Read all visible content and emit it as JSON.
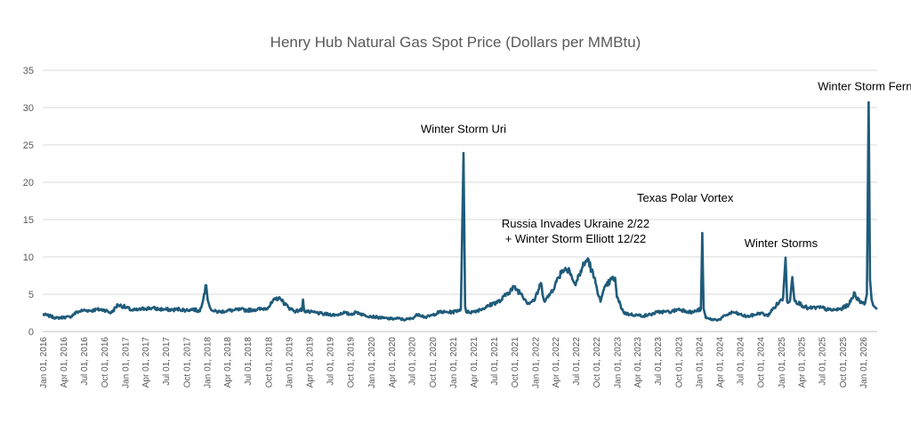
{
  "chart_data": {
    "type": "line",
    "title": "Henry Hub Natural Gas Spot Price (Dollars per MMBtu)",
    "xlabel": "",
    "ylabel": "",
    "ylim": [
      0,
      35
    ],
    "y_ticks": [
      0,
      5,
      10,
      15,
      20,
      25,
      30,
      35
    ],
    "grid": "horizontal",
    "line_color": "#1f5b7a",
    "x_tick_labels": [
      "Jan 01, 2016",
      "Apr 01, 2016",
      "Jul 01, 2016",
      "Oct 01, 2016",
      "Jan 01, 2017",
      "Apr 01, 2017",
      "Jul 01, 2017",
      "Oct 01, 2017",
      "Jan 01, 2018",
      "Apr 01, 2018",
      "Jul 01, 2018",
      "Oct 01, 2018",
      "Jan 01, 2019",
      "Apr 01, 2019",
      "Jul 01, 2019",
      "Oct 01, 2019",
      "Jan 01, 2020",
      "Apr 01, 2020",
      "Jul 01, 2020",
      "Oct 01, 2020",
      "Jan 01, 2021",
      "Apr 01, 2021",
      "Jul 01, 2021",
      "Oct 01, 2021",
      "Jan 01, 2022",
      "Apr 01, 2022",
      "Jul 01, 2022",
      "Oct 01, 2022",
      "Jan 01, 2023",
      "Apr 01, 2023",
      "Jul 01, 2023",
      "Oct 01, 2023",
      "Jan 01, 2024",
      "Apr 01, 2024",
      "Jul 01, 2024",
      "Oct 01, 2024",
      "Jan 01, 2025",
      "Apr 01, 2025",
      "Jul 01, 2025",
      "Oct 01, 2025",
      "Jan 01, 2026"
    ],
    "series": [
      {
        "points": [
          [
            "2016-01-01",
            2.3
          ],
          [
            "2016-02-01",
            2.1
          ],
          [
            "2016-03-01",
            1.8
          ],
          [
            "2016-04-01",
            1.9
          ],
          [
            "2016-05-01",
            1.95
          ],
          [
            "2016-06-01",
            2.6
          ],
          [
            "2016-07-01",
            2.85
          ],
          [
            "2016-08-01",
            2.8
          ],
          [
            "2016-09-01",
            2.95
          ],
          [
            "2016-10-01",
            2.9
          ],
          [
            "2016-11-01",
            2.5
          ],
          [
            "2016-12-01",
            3.6
          ],
          [
            "2017-01-01",
            3.3
          ],
          [
            "2017-02-01",
            2.85
          ],
          [
            "2017-03-01",
            2.9
          ],
          [
            "2017-04-01",
            3.1
          ],
          [
            "2017-05-01",
            3.15
          ],
          [
            "2017-06-01",
            3.0
          ],
          [
            "2017-07-01",
            2.95
          ],
          [
            "2017-08-01",
            2.9
          ],
          [
            "2017-09-01",
            3.0
          ],
          [
            "2017-10-01",
            2.85
          ],
          [
            "2017-11-01",
            3.0
          ],
          [
            "2017-12-01",
            2.7
          ],
          [
            "2017-12-29",
            6.2
          ],
          [
            "2018-01-05",
            4.2
          ],
          [
            "2018-01-15",
            3.2
          ],
          [
            "2018-02-01",
            2.7
          ],
          [
            "2018-03-01",
            2.65
          ],
          [
            "2018-04-01",
            2.8
          ],
          [
            "2018-05-01",
            2.85
          ],
          [
            "2018-06-01",
            2.95
          ],
          [
            "2018-07-01",
            2.85
          ],
          [
            "2018-08-01",
            2.95
          ],
          [
            "2018-09-01",
            3.0
          ],
          [
            "2018-10-01",
            3.25
          ],
          [
            "2018-11-01",
            4.3
          ],
          [
            "2018-11-20",
            4.6
          ],
          [
            "2018-12-01",
            4.1
          ],
          [
            "2019-01-01",
            3.2
          ],
          [
            "2019-02-01",
            2.7
          ],
          [
            "2019-03-01",
            2.95
          ],
          [
            "2019-03-05",
            4.3
          ],
          [
            "2019-03-10",
            2.8
          ],
          [
            "2019-04-01",
            2.6
          ],
          [
            "2019-05-01",
            2.55
          ],
          [
            "2019-06-01",
            2.35
          ],
          [
            "2019-07-01",
            2.3
          ],
          [
            "2019-08-01",
            2.2
          ],
          [
            "2019-09-01",
            2.55
          ],
          [
            "2019-10-01",
            2.3
          ],
          [
            "2019-11-01",
            2.6
          ],
          [
            "2019-12-01",
            2.2
          ],
          [
            "2020-01-01",
            2.05
          ],
          [
            "2020-02-01",
            1.9
          ],
          [
            "2020-03-01",
            1.8
          ],
          [
            "2020-04-01",
            1.7
          ],
          [
            "2020-05-01",
            1.75
          ],
          [
            "2020-06-01",
            1.6
          ],
          [
            "2020-07-01",
            1.75
          ],
          [
            "2020-08-01",
            2.35
          ],
          [
            "2020-09-01",
            1.9
          ],
          [
            "2020-10-01",
            2.2
          ],
          [
            "2020-11-01",
            2.6
          ],
          [
            "2020-12-01",
            2.6
          ],
          [
            "2021-01-01",
            2.6
          ],
          [
            "2021-02-05",
            3.0
          ],
          [
            "2021-02-17",
            23.9
          ],
          [
            "2021-02-24",
            3.4
          ],
          [
            "2021-03-01",
            2.6
          ],
          [
            "2021-04-01",
            2.65
          ],
          [
            "2021-05-01",
            2.95
          ],
          [
            "2021-06-01",
            3.3
          ],
          [
            "2021-07-01",
            3.8
          ],
          [
            "2021-08-01",
            4.1
          ],
          [
            "2021-09-01",
            5.2
          ],
          [
            "2021-10-01",
            5.9
          ],
          [
            "2021-11-01",
            5.1
          ],
          [
            "2021-12-01",
            3.8
          ],
          [
            "2022-01-01",
            4.3
          ],
          [
            "2022-01-28",
            6.5
          ],
          [
            "2022-02-10",
            4.2
          ],
          [
            "2022-03-01",
            4.6
          ],
          [
            "2022-04-01",
            6.3
          ],
          [
            "2022-05-01",
            8.2
          ],
          [
            "2022-06-01",
            8.5
          ],
          [
            "2022-06-20",
            6.8
          ],
          [
            "2022-07-01",
            6.2
          ],
          [
            "2022-07-15",
            7.5
          ],
          [
            "2022-08-01",
            8.6
          ],
          [
            "2022-08-25",
            9.8
          ],
          [
            "2022-09-10",
            8.2
          ],
          [
            "2022-10-01",
            6.2
          ],
          [
            "2022-10-20",
            4.0
          ],
          [
            "2022-11-01",
            5.4
          ],
          [
            "2022-12-01",
            6.8
          ],
          [
            "2022-12-24",
            7.2
          ],
          [
            "2023-01-01",
            4.6
          ],
          [
            "2023-02-01",
            2.5
          ],
          [
            "2023-03-01",
            2.3
          ],
          [
            "2023-04-01",
            2.2
          ],
          [
            "2023-05-01",
            2.1
          ],
          [
            "2023-06-01",
            2.3
          ],
          [
            "2023-07-01",
            2.6
          ],
          [
            "2023-08-01",
            2.65
          ],
          [
            "2023-09-01",
            2.65
          ],
          [
            "2023-10-01",
            3.0
          ],
          [
            "2023-11-01",
            2.8
          ],
          [
            "2023-12-01",
            2.55
          ],
          [
            "2024-01-10",
            3.0
          ],
          [
            "2024-01-16",
            13.2
          ],
          [
            "2024-01-22",
            3.1
          ],
          [
            "2024-02-01",
            1.8
          ],
          [
            "2024-03-01",
            1.6
          ],
          [
            "2024-04-01",
            1.6
          ],
          [
            "2024-05-01",
            2.2
          ],
          [
            "2024-06-01",
            2.6
          ],
          [
            "2024-07-01",
            2.3
          ],
          [
            "2024-08-01",
            2.0
          ],
          [
            "2024-09-01",
            2.2
          ],
          [
            "2024-10-01",
            2.5
          ],
          [
            "2024-11-01",
            2.1
          ],
          [
            "2024-12-01",
            3.2
          ],
          [
            "2025-01-10",
            4.5
          ],
          [
            "2025-01-21",
            9.9
          ],
          [
            "2025-01-28",
            4.0
          ],
          [
            "2025-02-10",
            4.2
          ],
          [
            "2025-02-20",
            7.3
          ],
          [
            "2025-03-01",
            4.2
          ],
          [
            "2025-04-01",
            3.6
          ],
          [
            "2025-05-01",
            3.1
          ],
          [
            "2025-06-01",
            3.2
          ],
          [
            "2025-07-01",
            3.2
          ],
          [
            "2025-08-01",
            2.9
          ],
          [
            "2025-09-01",
            2.9
          ],
          [
            "2025-10-01",
            3.1
          ],
          [
            "2025-11-01",
            3.7
          ],
          [
            "2025-11-25",
            5.2
          ],
          [
            "2025-12-10",
            4.2
          ],
          [
            "2026-01-10",
            3.8
          ],
          [
            "2026-01-18",
            5.0
          ],
          [
            "2026-01-26",
            30.7
          ],
          [
            "2026-02-01",
            7.0
          ],
          [
            "2026-02-08",
            4.3
          ],
          [
            "2026-02-15",
            3.5
          ],
          [
            "2026-02-25",
            3.2
          ],
          [
            "2026-03-05",
            3.0
          ]
        ]
      }
    ],
    "annotations": [
      {
        "text": "Winter Storm Uri",
        "date": "2021-02-17",
        "y": 26.6
      },
      {
        "text": "Russia Invades Ukraine 2/22",
        "date": "2022-07-01",
        "y": 13.9
      },
      {
        "text": "+ Winter Storm Elliott 12/22",
        "date": "2022-07-01",
        "y": 11.9
      },
      {
        "text": "Texas Polar Vortex",
        "date": "2023-11-01",
        "y": 17.4
      },
      {
        "text": "Winter Storms",
        "date": "2025-01-01",
        "y": 11.3
      },
      {
        "text": "Winter Storm Fern",
        "date": "2026-01-10",
        "y": 32.3
      }
    ]
  }
}
